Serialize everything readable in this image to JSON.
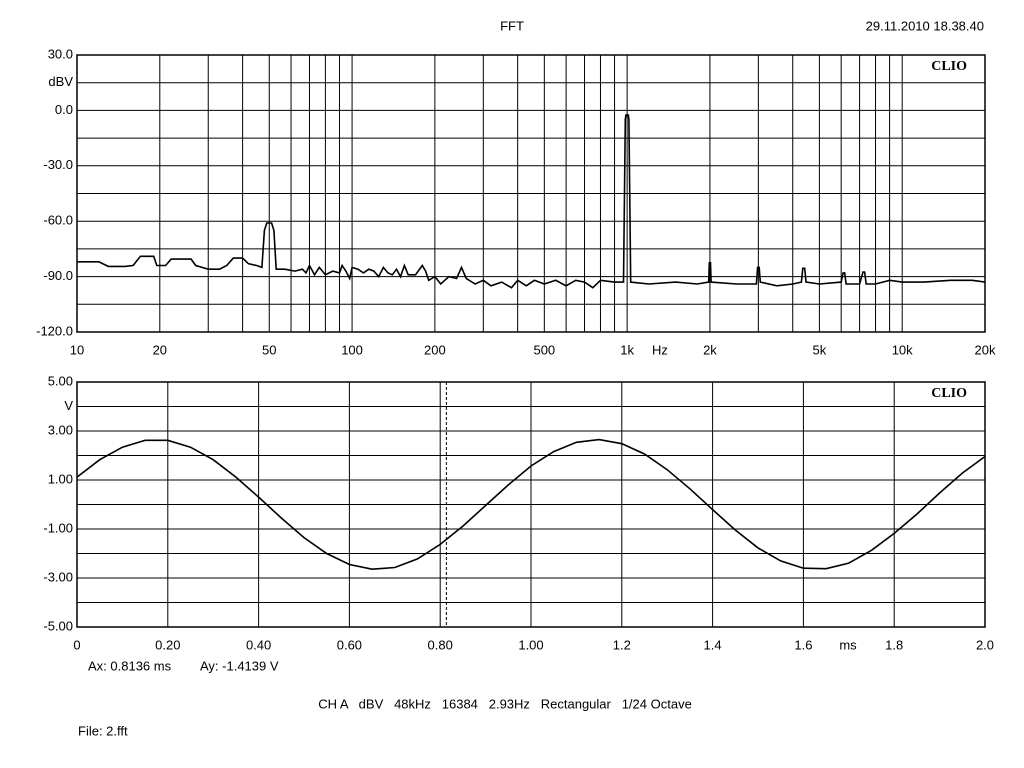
{
  "header": {
    "title": "FFT",
    "date": "29.11.2010 18.38.40"
  },
  "chart_data": [
    {
      "type": "line",
      "brand": "CLIO",
      "x_unit": "Hz",
      "y_unit": "dBV",
      "xscale": "log",
      "grid": true,
      "color": "#000000",
      "xlim": [
        10,
        20000
      ],
      "ylim": [
        -120,
        30
      ],
      "xticks": [
        10,
        20,
        50,
        100,
        200,
        500,
        {
          "value": 1000,
          "label": "1k"
        },
        {
          "value": 2000,
          "label": "2k"
        },
        {
          "value": 5000,
          "label": "5k"
        },
        {
          "value": 10000,
          "label": "10k"
        },
        {
          "value": 20000,
          "label": "20k"
        }
      ],
      "xminor": [
        30,
        40,
        60,
        70,
        80,
        90,
        300,
        400,
        600,
        700,
        800,
        900,
        3000,
        4000,
        6000,
        7000,
        8000,
        9000
      ],
      "yticks": [
        {
          "value": 30,
          "label": "30.0"
        },
        {
          "value": 0,
          "label": "0.0"
        },
        {
          "value": -30,
          "label": "-30.0"
        },
        {
          "value": -60,
          "label": "-60.0"
        },
        {
          "value": -90,
          "label": "-90.0"
        },
        {
          "value": -120,
          "label": "-120.0"
        }
      ],
      "yminor": [
        15,
        -15,
        -45,
        -75,
        -105
      ],
      "x": [
        10,
        12,
        13,
        15,
        16,
        17,
        19,
        19.5,
        21,
        22,
        26,
        27,
        30,
        33,
        35,
        37,
        40,
        42,
        45,
        47,
        48,
        49,
        51,
        52,
        53,
        57,
        62,
        66,
        68,
        70,
        73,
        76,
        80,
        85,
        90,
        92,
        95,
        98,
        100,
        105,
        110,
        115,
        120,
        125,
        130,
        135,
        140,
        145,
        150,
        155,
        160,
        170,
        180,
        185,
        190,
        200,
        210,
        225,
        240,
        250,
        260,
        280,
        300,
        320,
        350,
        380,
        400,
        430,
        460,
        500,
        550,
        600,
        650,
        700,
        750,
        800,
        900,
        970,
        985,
        990,
        1010,
        1015,
        1030,
        1200,
        1500,
        1800,
        1980,
        1990,
        2010,
        2020,
        2500,
        2950,
        2980,
        3020,
        3050,
        3500,
        4000,
        4300,
        4350,
        4420,
        4470,
        5000,
        6000,
        6100,
        6180,
        6250,
        7000,
        7200,
        7300,
        7400,
        8000,
        9000,
        10000,
        12000,
        15000,
        18000,
        20000
      ],
      "values": [
        -82,
        -82,
        -84.5,
        -84.5,
        -84,
        -79,
        -79,
        -84,
        -84,
        -80.5,
        -80.5,
        -84,
        -86,
        -86,
        -84,
        -80,
        -80,
        -83,
        -84,
        -85,
        -65,
        -61,
        -61,
        -65,
        -86,
        -86,
        -87,
        -86,
        -88,
        -84,
        -89,
        -85,
        -89,
        -87,
        -88,
        -84,
        -87,
        -91,
        -85,
        -86,
        -88,
        -86,
        -87,
        -90,
        -85,
        -88,
        -89,
        -86,
        -90,
        -84,
        -89,
        -89,
        -84,
        -87,
        -92,
        -90,
        -94,
        -90,
        -91,
        -85,
        -91,
        -94,
        -92,
        -95,
        -93,
        -96,
        -92,
        -95,
        -92,
        -94,
        -92,
        -95,
        -92,
        -93,
        -96,
        -92,
        -93,
        -93,
        -5,
        -2.5,
        -2.5,
        -5,
        -93,
        -94,
        -93,
        -94,
        -93,
        -82.5,
        -82.5,
        -93,
        -94,
        -94,
        -85,
        -85,
        -93,
        -95,
        -94,
        -93,
        -85.5,
        -85.5,
        -93,
        -94,
        -93,
        -88,
        -88,
        -94,
        -94,
        -87.5,
        -87.5,
        -94,
        -94,
        -92,
        -93,
        -93,
        -92,
        -92,
        -93
      ]
    },
    {
      "type": "line",
      "brand": "CLIO",
      "x_unit": "ms",
      "y_unit": "V",
      "xscale": "linear",
      "grid": true,
      "color": "#000000",
      "xlim": [
        0,
        2.0
      ],
      "ylim": [
        -5,
        5
      ],
      "xticks": [
        0,
        {
          "value": 0.2,
          "label": "0.20"
        },
        {
          "value": 0.4,
          "label": "0.40"
        },
        {
          "value": 0.6,
          "label": "0.60"
        },
        {
          "value": 0.8,
          "label": "0.80"
        },
        {
          "value": 1,
          "label": "1.00"
        },
        1.2,
        1.4,
        1.6,
        1.8,
        {
          "value": 2,
          "label": "2.0"
        }
      ],
      "xminor": [],
      "yticks": [
        {
          "value": 5,
          "label": "5.00"
        },
        {
          "value": 3,
          "label": "3.00"
        },
        {
          "value": 1,
          "label": "1.00"
        },
        {
          "value": -1,
          "label": "-1.00"
        },
        {
          "value": -3,
          "label": "-3.00"
        },
        {
          "value": -5,
          "label": "-5.00"
        }
      ],
      "yminor": [
        4,
        2,
        0,
        -2,
        -4
      ],
      "x": [
        0,
        0.05,
        0.1,
        0.15,
        0.2,
        0.25,
        0.3,
        0.35,
        0.4,
        0.45,
        0.5,
        0.55,
        0.6,
        0.65,
        0.7,
        0.75,
        0.8,
        0.85,
        0.9,
        0.95,
        1,
        1.05,
        1.1,
        1.15,
        1.2,
        1.25,
        1.3,
        1.35,
        1.4,
        1.45,
        1.5,
        1.55,
        1.6,
        1.65,
        1.7,
        1.75,
        1.8,
        1.85,
        1.9,
        1.95,
        2
      ],
      "values": [
        1.12,
        1.83,
        2.34,
        2.62,
        2.62,
        2.34,
        1.83,
        1.12,
        0.3,
        -0.55,
        -1.35,
        -2.0,
        -2.45,
        -2.64,
        -2.57,
        -2.22,
        -1.63,
        -0.88,
        -0.04,
        0.8,
        1.57,
        2.16,
        2.54,
        2.65,
        2.48,
        2.06,
        1.42,
        0.64,
        -0.21,
        -1.04,
        -1.77,
        -2.3,
        -2.6,
        -2.62,
        -2.39,
        -1.87,
        -1.18,
        -0.39,
        0.47,
        1.28,
        1.96
      ],
      "cursor": {
        "x": 0.8136,
        "label": "Ax: 0.8136 ms",
        "y_label": "Ay: -1.4139 V"
      }
    }
  ],
  "footer": {
    "settings": "CH A   dBV   48kHz   16384   2.93Hz   Rectangular   1/24 Octave",
    "file": "File: 2.fft"
  }
}
